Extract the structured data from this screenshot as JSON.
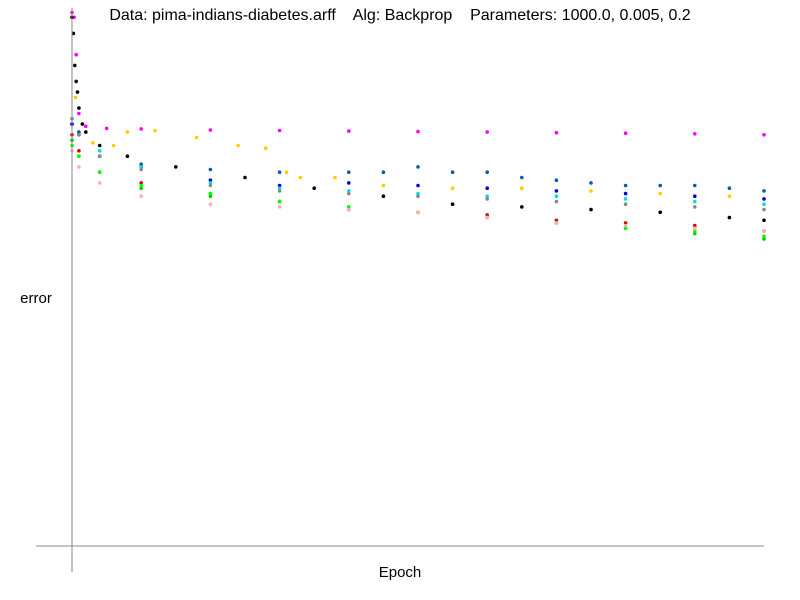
{
  "chart_data": {
    "type": "scatter",
    "title": "Data: pima-indians-diabetes.arff    Alg: Backprop    Parameters: 1000.0, 0.005, 0.2",
    "xlabel": "Epoch",
    "ylabel": "error",
    "xlim": [
      0,
      1000
    ],
    "ylim": [
      0,
      1
    ],
    "grid": false,
    "legend": "none",
    "series": [
      {
        "color": "#ff00ff",
        "points": [
          [
            0,
            0.999
          ],
          [
            3,
            0.99
          ],
          [
            6,
            0.92
          ],
          [
            10,
            0.81
          ],
          [
            20,
            0.786
          ],
          [
            50,
            0.782
          ],
          [
            100,
            0.781
          ],
          [
            200,
            0.779
          ],
          [
            300,
            0.778
          ],
          [
            400,
            0.777
          ],
          [
            500,
            0.776
          ],
          [
            600,
            0.775
          ],
          [
            700,
            0.774
          ],
          [
            800,
            0.773
          ],
          [
            900,
            0.772
          ],
          [
            1000,
            0.77
          ]
        ]
      },
      {
        "color": "#ffcc00",
        "points": [
          [
            0,
            0.99
          ],
          [
            5,
            0.84
          ],
          [
            10,
            0.775
          ],
          [
            30,
            0.755
          ],
          [
            60,
            0.75
          ],
          [
            80,
            0.775
          ],
          [
            120,
            0.778
          ],
          [
            180,
            0.765
          ],
          [
            240,
            0.75
          ],
          [
            280,
            0.745
          ],
          [
            310,
            0.7
          ],
          [
            330,
            0.69
          ],
          [
            380,
            0.69
          ],
          [
            450,
            0.675
          ],
          [
            550,
            0.67
          ],
          [
            650,
            0.67
          ],
          [
            750,
            0.665
          ],
          [
            850,
            0.66
          ],
          [
            950,
            0.655
          ],
          [
            1000,
            0.65
          ]
        ]
      },
      {
        "color": "#0060a0",
        "points": [
          [
            0,
            0.79
          ],
          [
            10,
            0.775
          ],
          [
            40,
            0.73
          ],
          [
            100,
            0.715
          ],
          [
            200,
            0.705
          ],
          [
            300,
            0.7
          ],
          [
            400,
            0.7
          ],
          [
            450,
            0.7
          ],
          [
            500,
            0.71
          ],
          [
            550,
            0.7
          ],
          [
            600,
            0.7
          ],
          [
            650,
            0.69
          ],
          [
            700,
            0.685
          ],
          [
            750,
            0.68
          ],
          [
            800,
            0.675
          ],
          [
            850,
            0.675
          ],
          [
            900,
            0.675
          ],
          [
            950,
            0.67
          ],
          [
            1000,
            0.665
          ]
        ]
      },
      {
        "color": "#0000dd",
        "points": [
          [
            0,
            0.79
          ],
          [
            10,
            0.77
          ],
          [
            40,
            0.73
          ],
          [
            100,
            0.71
          ],
          [
            200,
            0.685
          ],
          [
            300,
            0.675
          ],
          [
            400,
            0.68
          ],
          [
            500,
            0.675
          ],
          [
            600,
            0.67
          ],
          [
            700,
            0.665
          ],
          [
            800,
            0.66
          ],
          [
            900,
            0.655
          ],
          [
            1000,
            0.65
          ]
        ]
      },
      {
        "color": "#00dddd",
        "points": [
          [
            0,
            0.8
          ],
          [
            10,
            0.77
          ],
          [
            40,
            0.74
          ],
          [
            100,
            0.71
          ],
          [
            200,
            0.68
          ],
          [
            300,
            0.67
          ],
          [
            400,
            0.665
          ],
          [
            500,
            0.66
          ],
          [
            600,
            0.655
          ],
          [
            700,
            0.655
          ],
          [
            800,
            0.65
          ],
          [
            900,
            0.645
          ],
          [
            1000,
            0.64
          ]
        ]
      },
      {
        "color": "#888888",
        "points": [
          [
            0,
            0.8
          ],
          [
            10,
            0.77
          ],
          [
            40,
            0.73
          ],
          [
            100,
            0.705
          ],
          [
            200,
            0.675
          ],
          [
            300,
            0.665
          ],
          [
            400,
            0.66
          ],
          [
            500,
            0.655
          ],
          [
            600,
            0.65
          ],
          [
            700,
            0.645
          ],
          [
            800,
            0.64
          ],
          [
            900,
            0.635
          ],
          [
            1000,
            0.63
          ]
        ]
      },
      {
        "color": "#000000",
        "points": [
          [
            0,
            0.99
          ],
          [
            2,
            0.96
          ],
          [
            4,
            0.9
          ],
          [
            6,
            0.87
          ],
          [
            8,
            0.85
          ],
          [
            10,
            0.82
          ],
          [
            15,
            0.79
          ],
          [
            20,
            0.775
          ],
          [
            40,
            0.75
          ],
          [
            80,
            0.73
          ],
          [
            150,
            0.71
          ],
          [
            250,
            0.69
          ],
          [
            350,
            0.67
          ],
          [
            450,
            0.655
          ],
          [
            550,
            0.64
          ],
          [
            650,
            0.635
          ],
          [
            750,
            0.63
          ],
          [
            850,
            0.625
          ],
          [
            950,
            0.615
          ],
          [
            1000,
            0.61
          ]
        ]
      },
      {
        "color": "#dd0000",
        "points": [
          [
            0,
            0.77
          ],
          [
            10,
            0.74
          ],
          [
            40,
            0.7
          ],
          [
            100,
            0.68
          ],
          [
            200,
            0.66
          ],
          [
            300,
            0.645
          ],
          [
            400,
            0.63
          ],
          [
            500,
            0.625
          ],
          [
            600,
            0.62
          ],
          [
            700,
            0.61
          ],
          [
            800,
            0.605
          ],
          [
            900,
            0.6
          ],
          [
            1000,
            0.59
          ]
        ]
      },
      {
        "color": "#00cc00",
        "points": [
          [
            0,
            0.76
          ],
          [
            10,
            0.73
          ],
          [
            40,
            0.7
          ],
          [
            100,
            0.67
          ],
          [
            200,
            0.655
          ],
          [
            300,
            0.645
          ],
          [
            400,
            0.635
          ],
          [
            500,
            0.625
          ],
          [
            600,
            0.615
          ],
          [
            700,
            0.605
          ],
          [
            800,
            0.595
          ],
          [
            900,
            0.585
          ],
          [
            1000,
            0.575
          ]
        ]
      },
      {
        "color": "#00ff00",
        "points": [
          [
            0,
            0.75
          ],
          [
            10,
            0.73
          ],
          [
            40,
            0.7
          ],
          [
            100,
            0.675
          ],
          [
            200,
            0.66
          ],
          [
            300,
            0.645
          ],
          [
            400,
            0.635
          ],
          [
            500,
            0.625
          ],
          [
            600,
            0.615
          ],
          [
            700,
            0.605
          ],
          [
            800,
            0.595
          ],
          [
            900,
            0.59
          ],
          [
            1000,
            0.58
          ]
        ]
      },
      {
        "color": "#ffb0b0",
        "points": [
          [
            0,
            0.74
          ],
          [
            10,
            0.71
          ],
          [
            40,
            0.68
          ],
          [
            100,
            0.655
          ],
          [
            200,
            0.64
          ],
          [
            300,
            0.635
          ],
          [
            400,
            0.63
          ],
          [
            500,
            0.625
          ],
          [
            600,
            0.615
          ],
          [
            700,
            0.605
          ],
          [
            800,
            0.6
          ],
          [
            900,
            0.595
          ],
          [
            1000,
            0.59
          ]
        ]
      }
    ]
  }
}
